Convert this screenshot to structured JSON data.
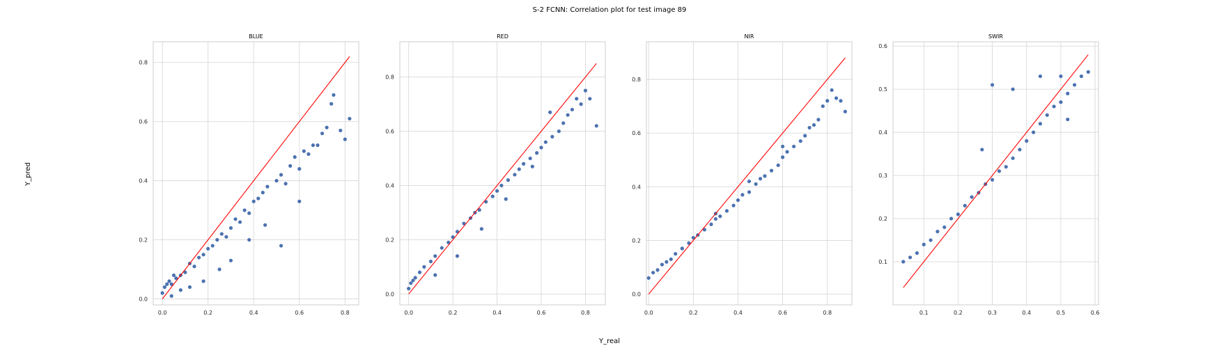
{
  "figure": {
    "title": "S-2 FCNN: Correlation plot for test image 89",
    "xlabel": "Y_real",
    "ylabel": "Y_pred"
  },
  "colors": {
    "points": "#4c72b0",
    "reference_line": "#ff0000",
    "grid": "#d9d9d9"
  },
  "chart_data": [
    {
      "type": "scatter",
      "title": "BLUE",
      "xlim": [
        -0.04,
        0.86
      ],
      "ylim": [
        -0.02,
        0.87
      ],
      "xticks": [
        0.0,
        0.2,
        0.4,
        0.6,
        0.8
      ],
      "yticks": [
        0.0,
        0.2,
        0.4,
        0.6,
        0.8
      ],
      "tick_labels_x": [
        "0.0",
        "0.2",
        "0.4",
        "0.6",
        "0.8"
      ],
      "tick_labels_y": [
        "0.0",
        "0.2",
        "0.4",
        "0.6",
        "0.8"
      ],
      "reference_line": [
        [
          0.0,
          0.0
        ],
        [
          0.82,
          0.82
        ]
      ],
      "series": [
        {
          "x": [
            0.0,
            0.01,
            0.02,
            0.03,
            0.04,
            0.05,
            0.06,
            0.08,
            0.1,
            0.12,
            0.14,
            0.16,
            0.18,
            0.2,
            0.22,
            0.24,
            0.26,
            0.28,
            0.3,
            0.32,
            0.34,
            0.36,
            0.38,
            0.4,
            0.42,
            0.44,
            0.46,
            0.5,
            0.52,
            0.54,
            0.56,
            0.58,
            0.6,
            0.62,
            0.64,
            0.66,
            0.7,
            0.72,
            0.74,
            0.75,
            0.78,
            0.8,
            0.82,
            0.68,
            0.6,
            0.52,
            0.45,
            0.38,
            0.3,
            0.25,
            0.18,
            0.12,
            0.08,
            0.04
          ],
          "y": [
            0.02,
            0.04,
            0.05,
            0.06,
            0.05,
            0.08,
            0.07,
            0.08,
            0.09,
            0.12,
            0.11,
            0.14,
            0.15,
            0.17,
            0.18,
            0.2,
            0.22,
            0.21,
            0.24,
            0.27,
            0.26,
            0.3,
            0.29,
            0.33,
            0.34,
            0.36,
            0.38,
            0.4,
            0.42,
            0.39,
            0.45,
            0.48,
            0.44,
            0.5,
            0.49,
            0.52,
            0.56,
            0.58,
            0.66,
            0.69,
            0.57,
            0.54,
            0.61,
            0.52,
            0.33,
            0.18,
            0.25,
            0.2,
            0.13,
            0.1,
            0.06,
            0.04,
            0.03,
            0.01
          ]
        }
      ]
    },
    {
      "type": "scatter",
      "title": "RED",
      "xlim": [
        -0.04,
        0.89
      ],
      "ylim": [
        -0.04,
        0.93
      ],
      "xticks": [
        0.0,
        0.2,
        0.4,
        0.6,
        0.8
      ],
      "yticks": [
        0.0,
        0.2,
        0.4,
        0.6,
        0.8
      ],
      "tick_labels_x": [
        "0.0",
        "0.2",
        "0.4",
        "0.6",
        "0.8"
      ],
      "tick_labels_y": [
        "0.0",
        "0.2",
        "0.4",
        "0.6",
        "0.8"
      ],
      "reference_line": [
        [
          0.0,
          0.0
        ],
        [
          0.85,
          0.85
        ]
      ],
      "series": [
        {
          "x": [
            0.0,
            0.01,
            0.02,
            0.03,
            0.05,
            0.07,
            0.1,
            0.12,
            0.15,
            0.18,
            0.2,
            0.22,
            0.25,
            0.28,
            0.3,
            0.32,
            0.35,
            0.38,
            0.4,
            0.42,
            0.45,
            0.48,
            0.5,
            0.52,
            0.55,
            0.58,
            0.6,
            0.62,
            0.65,
            0.68,
            0.7,
            0.72,
            0.74,
            0.76,
            0.78,
            0.8,
            0.82,
            0.85,
            0.64,
            0.56,
            0.44,
            0.33,
            0.22,
            0.12
          ],
          "y": [
            0.02,
            0.04,
            0.05,
            0.06,
            0.08,
            0.1,
            0.12,
            0.14,
            0.17,
            0.19,
            0.21,
            0.23,
            0.26,
            0.28,
            0.3,
            0.31,
            0.34,
            0.36,
            0.38,
            0.4,
            0.42,
            0.44,
            0.46,
            0.48,
            0.5,
            0.52,
            0.54,
            0.56,
            0.58,
            0.6,
            0.63,
            0.66,
            0.68,
            0.72,
            0.7,
            0.75,
            0.72,
            0.62,
            0.67,
            0.47,
            0.35,
            0.24,
            0.14,
            0.07
          ]
        }
      ]
    },
    {
      "type": "scatter",
      "title": "NIR",
      "xlim": [
        -0.01,
        0.91
      ],
      "ylim": [
        -0.04,
        0.94
      ],
      "xticks": [
        0.0,
        0.2,
        0.4,
        0.6,
        0.8
      ],
      "yticks": [
        0.0,
        0.2,
        0.4,
        0.6,
        0.8
      ],
      "tick_labels_x": [
        "0.0",
        "0.2",
        "0.4",
        "0.6",
        "0.8"
      ],
      "tick_labels_y": [
        "0.0",
        "0.2",
        "0.4",
        "0.6",
        "0.8"
      ],
      "reference_line": [
        [
          0.0,
          0.0
        ],
        [
          0.88,
          0.88
        ]
      ],
      "series": [
        {
          "x": [
            0.0,
            0.02,
            0.04,
            0.06,
            0.08,
            0.1,
            0.12,
            0.15,
            0.18,
            0.2,
            0.22,
            0.25,
            0.28,
            0.3,
            0.32,
            0.35,
            0.38,
            0.4,
            0.42,
            0.45,
            0.48,
            0.5,
            0.52,
            0.55,
            0.58,
            0.6,
            0.62,
            0.65,
            0.68,
            0.7,
            0.72,
            0.74,
            0.76,
            0.78,
            0.8,
            0.82,
            0.84,
            0.86,
            0.88,
            0.6,
            0.45,
            0.3,
            0.15
          ],
          "y": [
            0.06,
            0.08,
            0.09,
            0.11,
            0.12,
            0.13,
            0.15,
            0.17,
            0.19,
            0.21,
            0.22,
            0.24,
            0.26,
            0.28,
            0.29,
            0.31,
            0.33,
            0.35,
            0.37,
            0.38,
            0.41,
            0.43,
            0.44,
            0.46,
            0.48,
            0.51,
            0.53,
            0.55,
            0.57,
            0.59,
            0.62,
            0.63,
            0.65,
            0.7,
            0.72,
            0.76,
            0.73,
            0.72,
            0.68,
            0.55,
            0.42,
            0.3,
            0.17
          ]
        }
      ]
    },
    {
      "type": "scatter",
      "title": "SWIR",
      "xlim": [
        0.01,
        0.61
      ],
      "ylim": [
        0.0,
        0.61
      ],
      "xticks": [
        0.1,
        0.2,
        0.3,
        0.4,
        0.5,
        0.6
      ],
      "yticks": [
        0.1,
        0.2,
        0.3,
        0.4,
        0.5,
        0.6
      ],
      "tick_labels_x": [
        "0.1",
        "0.2",
        "0.3",
        "0.4",
        "0.5",
        "0.6"
      ],
      "tick_labels_y": [
        "0.1",
        "0.2",
        "0.3",
        "0.4",
        "0.5",
        "0.6"
      ],
      "reference_line": [
        [
          0.04,
          0.04
        ],
        [
          0.58,
          0.58
        ]
      ],
      "series": [
        {
          "x": [
            0.04,
            0.06,
            0.08,
            0.1,
            0.12,
            0.14,
            0.16,
            0.18,
            0.2,
            0.22,
            0.24,
            0.26,
            0.28,
            0.3,
            0.32,
            0.34,
            0.36,
            0.38,
            0.4,
            0.42,
            0.44,
            0.46,
            0.48,
            0.5,
            0.52,
            0.54,
            0.56,
            0.58,
            0.3,
            0.27,
            0.36,
            0.44,
            0.5,
            0.52
          ],
          "y": [
            0.1,
            0.11,
            0.12,
            0.14,
            0.15,
            0.17,
            0.18,
            0.2,
            0.21,
            0.23,
            0.25,
            0.26,
            0.28,
            0.29,
            0.31,
            0.32,
            0.34,
            0.36,
            0.38,
            0.4,
            0.42,
            0.44,
            0.46,
            0.47,
            0.49,
            0.51,
            0.53,
            0.54,
            0.51,
            0.36,
            0.5,
            0.53,
            0.53,
            0.43
          ]
        }
      ]
    }
  ]
}
